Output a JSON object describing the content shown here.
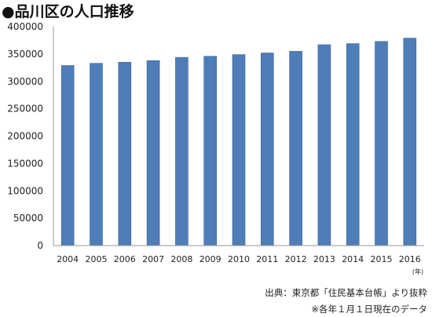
{
  "chart_data": {
    "type": "bar",
    "title": "●品川区の人口推移",
    "categories": [
      "2004",
      "2005",
      "2006",
      "2007",
      "2008",
      "2009",
      "2010",
      "2011",
      "2012",
      "2013",
      "2014",
      "2015",
      "2016"
    ],
    "series": [
      {
        "values": [
          329000,
          333000,
          335000,
          338000,
          344000,
          346000,
          349000,
          352000,
          355000,
          367000,
          369000,
          373000,
          379000
        ],
        "color": "#4f7db8"
      }
    ],
    "ylim": [
      0,
      400000
    ],
    "yticks": [
      "0",
      "50000",
      "100000",
      "150000",
      "200000",
      "250000",
      "300000",
      "350000",
      "400000"
    ],
    "x_unit": "(年)",
    "grid": false,
    "legend": "none"
  },
  "notes": {
    "source": "出典：東京都「住民基本台帳」より抜粋",
    "footnote": "※各年１月１日現在のデータ"
  },
  "colors": {
    "bar": "#4f7db8",
    "bar_edge": "#3b659e",
    "axis": "#999999"
  }
}
